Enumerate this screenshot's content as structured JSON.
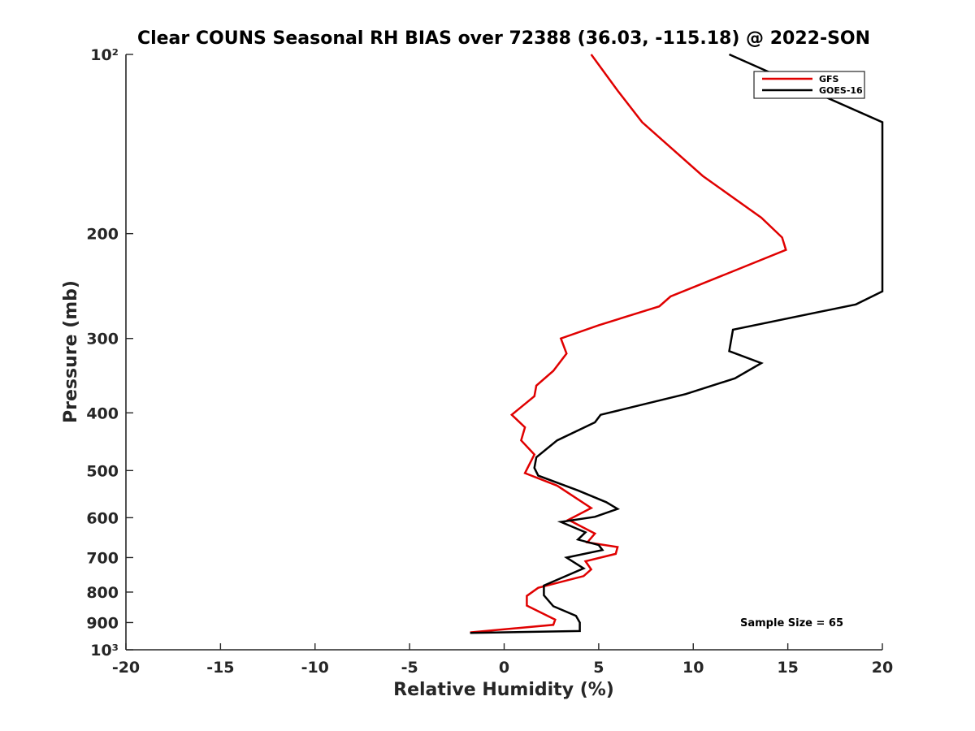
{
  "chart_data": {
    "type": "line",
    "title": "Clear COUNS Seasonal RH BIAS over 72388 (36.03, -115.18) @ 2022-SON",
    "xlabel": "Relative Humidity (%)",
    "ylabel": "Pressure (mb)",
    "xlim": [
      -20,
      20
    ],
    "ylim": [
      1000,
      100
    ],
    "y_scale": "log",
    "y_reversed": true,
    "x_ticks": [
      -20,
      -15,
      -10,
      -5,
      0,
      5,
      10,
      15,
      20
    ],
    "x_tick_labels": [
      "-20",
      "-15",
      "-10",
      "-5",
      "0",
      "5",
      "10",
      "15",
      "20"
    ],
    "y_ticks": [
      100,
      200,
      300,
      400,
      500,
      600,
      700,
      800,
      900,
      1000
    ],
    "y_tick_labels": [
      "10²",
      "200",
      "300",
      "400",
      "500",
      "600",
      "700",
      "800",
      "900",
      "10³"
    ],
    "grid": false,
    "legend_position": "top-right",
    "annotation": "Sample Size = 65",
    "series": [
      {
        "name": "GFS",
        "color": "#e00000",
        "points": [
          [
            4.6,
            100
          ],
          [
            6.0,
            115
          ],
          [
            7.3,
            130
          ],
          [
            10.5,
            160
          ],
          [
            13.6,
            188
          ],
          [
            14.7,
            203
          ],
          [
            14.9,
            213
          ],
          [
            8.8,
            255
          ],
          [
            8.2,
            265
          ],
          [
            5.0,
            285
          ],
          [
            3.0,
            300
          ],
          [
            3.3,
            318
          ],
          [
            2.6,
            340
          ],
          [
            1.7,
            360
          ],
          [
            1.6,
            375
          ],
          [
            0.4,
            403
          ],
          [
            1.1,
            423
          ],
          [
            0.9,
            445
          ],
          [
            1.6,
            470
          ],
          [
            1.1,
            505
          ],
          [
            2.8,
            530
          ],
          [
            4.6,
            578
          ],
          [
            3.4,
            605
          ],
          [
            4.8,
            638
          ],
          [
            4.4,
            660
          ],
          [
            6.0,
            672
          ],
          [
            5.9,
            690
          ],
          [
            4.3,
            710
          ],
          [
            4.6,
            733
          ],
          [
            4.2,
            752
          ],
          [
            1.8,
            787
          ],
          [
            1.2,
            812
          ],
          [
            1.2,
            843
          ],
          [
            2.7,
            890
          ],
          [
            2.6,
            908
          ],
          [
            -1.8,
            935
          ]
        ]
      },
      {
        "name": "GOES-16",
        "color": "#000000",
        "points": [
          [
            11.9,
            100
          ],
          [
            20.0,
            130
          ],
          [
            20.0,
            250
          ],
          [
            18.6,
            263
          ],
          [
            12.1,
            290
          ],
          [
            11.9,
            315
          ],
          [
            13.6,
            330
          ],
          [
            12.2,
            350
          ],
          [
            9.6,
            372
          ],
          [
            5.1,
            403
          ],
          [
            4.8,
            415
          ],
          [
            2.8,
            445
          ],
          [
            1.7,
            475
          ],
          [
            1.6,
            495
          ],
          [
            1.8,
            510
          ],
          [
            3.9,
            540
          ],
          [
            5.4,
            565
          ],
          [
            6.0,
            580
          ],
          [
            4.8,
            598
          ],
          [
            3.0,
            610
          ],
          [
            4.3,
            635
          ],
          [
            3.9,
            653
          ],
          [
            5.0,
            667
          ],
          [
            5.2,
            680
          ],
          [
            3.3,
            700
          ],
          [
            4.2,
            730
          ],
          [
            2.1,
            780
          ],
          [
            2.1,
            810
          ],
          [
            2.6,
            845
          ],
          [
            3.8,
            877
          ],
          [
            4.0,
            900
          ],
          [
            4.0,
            930
          ],
          [
            -1.8,
            937
          ]
        ]
      }
    ]
  }
}
